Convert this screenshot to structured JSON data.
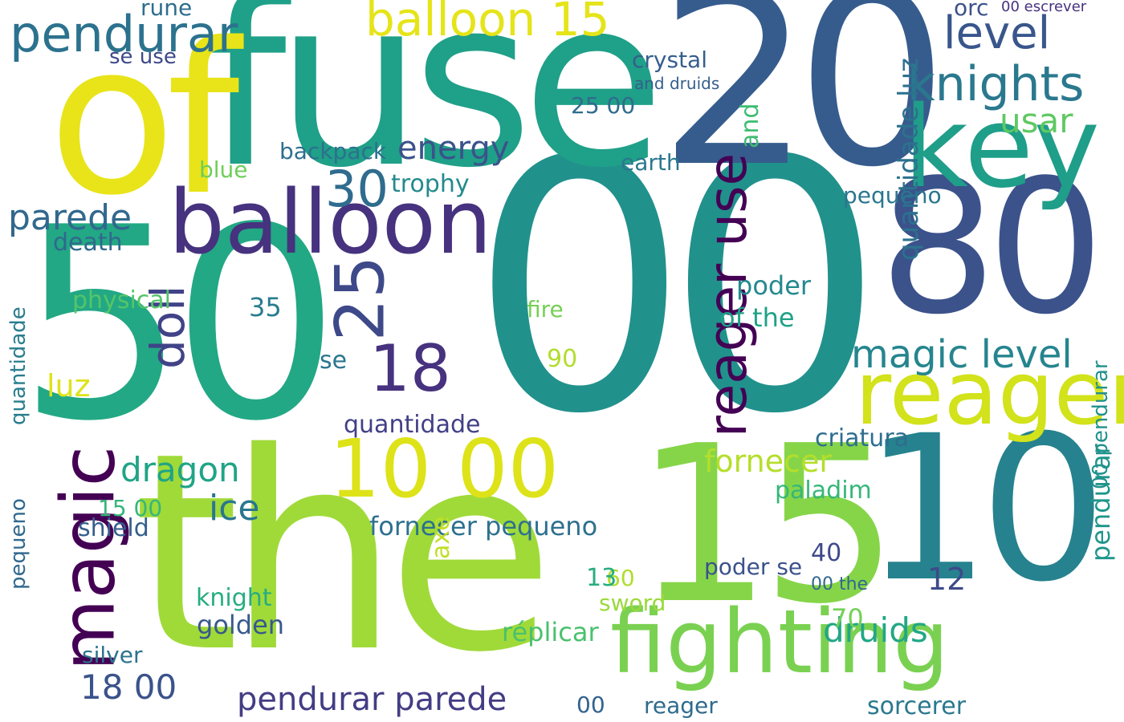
{
  "words": [
    {
      "text": "00",
      "color": "#21918c"
    },
    {
      "text": "50",
      "color": "#22a884"
    },
    {
      "text": "the",
      "color": "#a0da39"
    },
    {
      "text": "fuse",
      "color": "#1fa088"
    },
    {
      "text": "of",
      "color": "#e8e419"
    },
    {
      "text": "20",
      "color": "#365c8d"
    },
    {
      "text": "10",
      "color": "#26828e"
    },
    {
      "text": "15",
      "color": "#86d549"
    },
    {
      "text": "80",
      "color": "#3b528b"
    },
    {
      "text": "balloon",
      "color": "#46327e"
    },
    {
      "text": "magic",
      "color": "#440154"
    },
    {
      "text": "key",
      "color": "#1f9e89"
    },
    {
      "text": "reager",
      "color": "#d2e21b"
    },
    {
      "text": "fighting",
      "color": "#7ad151"
    },
    {
      "text": "10 00",
      "color": "#dde318"
    },
    {
      "text": "reager use",
      "color": "#440154"
    },
    {
      "text": "pendurar",
      "color": "#2c728e"
    },
    {
      "text": "knights",
      "color": "#2a788e"
    },
    {
      "text": "balloon 15",
      "color": "#e5e419"
    },
    {
      "text": "level",
      "color": "#39568c"
    },
    {
      "text": "18",
      "color": "#46327e"
    },
    {
      "text": "25",
      "color": "#3e4989"
    },
    {
      "text": "30",
      "color": "#2f6c8e"
    },
    {
      "text": "doll",
      "color": "#404387"
    },
    {
      "text": "parede",
      "color": "#31688e"
    },
    {
      "text": "magic level",
      "color": "#25858e"
    },
    {
      "text": "usar",
      "color": "#5ec962"
    },
    {
      "text": "energy",
      "color": "#3b528b"
    },
    {
      "text": "dragon",
      "color": "#20a486"
    },
    {
      "text": "ice",
      "color": "#2a768e"
    },
    {
      "text": "pendurar parede",
      "color": "#433d84"
    },
    {
      "text": "druids",
      "color": "#22a785"
    },
    {
      "text": "18 00",
      "color": "#3a538b"
    },
    {
      "text": "quantidade luz",
      "color": "#2c718e"
    },
    {
      "text": "pendurar",
      "color": "#1f968b"
    },
    {
      "text": "fornecer",
      "color": "#b5de2b"
    },
    {
      "text": "criatura",
      "color": "#2e6e8e"
    },
    {
      "text": "quantidade",
      "color": "#424086"
    },
    {
      "text": "poder",
      "color": "#23898e"
    },
    {
      "text": "of the",
      "color": "#1fa187"
    },
    {
      "text": "fornecer pequeno",
      "color": "#2d708e"
    },
    {
      "text": "réplicar",
      "color": "#4ac16d"
    },
    {
      "text": "sorcerer",
      "color": "#2a788e"
    },
    {
      "text": "paladim",
      "color": "#35b779"
    },
    {
      "text": "golden",
      "color": "#38598c"
    },
    {
      "text": "shield",
      "color": "#355f8d"
    },
    {
      "text": "physical",
      "color": "#54c568"
    },
    {
      "text": "death",
      "color": "#31688e"
    },
    {
      "text": "luz",
      "color": "#dde318"
    },
    {
      "text": "quantidade",
      "color": "#287d8e"
    },
    {
      "text": "backpack",
      "color": "#2d708e"
    },
    {
      "text": "crystal",
      "color": "#355e8d"
    },
    {
      "text": "trophy",
      "color": "#238a8d"
    },
    {
      "text": "earth",
      "color": "#2a788e"
    },
    {
      "text": "pequeno",
      "color": "#2a768e"
    },
    {
      "text": "knight",
      "color": "#27ad81"
    },
    {
      "text": "silver",
      "color": "#2c738e"
    },
    {
      "text": "poder se",
      "color": "#3b528b"
    },
    {
      "text": "reager",
      "color": "#2f6b8e"
    },
    {
      "text": "sword",
      "color": "#9bd93c"
    },
    {
      "text": "fire",
      "color": "#75d054"
    },
    {
      "text": "blue",
      "color": "#6ece58"
    },
    {
      "text": "se use",
      "color": "#3e4989"
    },
    {
      "text": "rune",
      "color": "#2e6d8e"
    },
    {
      "text": "orc",
      "color": "#3b528b"
    },
    {
      "text": "00 escrever",
      "color": "#46327e"
    },
    {
      "text": "12",
      "color": "#3e4a89"
    },
    {
      "text": "40",
      "color": "#3e4a89"
    },
    {
      "text": "70",
      "color": "#73d056"
    },
    {
      "text": "60",
      "color": "#b0dd2f"
    },
    {
      "text": "90",
      "color": "#b2dd2d"
    },
    {
      "text": "35",
      "color": "#287c8e"
    },
    {
      "text": "13",
      "color": "#26ad81"
    },
    {
      "text": "25 00",
      "color": "#2f6c8e"
    },
    {
      "text": "15 00",
      "color": "#35b779"
    },
    {
      "text": "00 pendurar",
      "color": "#21918c"
    },
    {
      "text": "and",
      "color": "#3fbc73"
    },
    {
      "text": "and druids",
      "color": "#355f8d"
    },
    {
      "text": "axe",
      "color": "#c0df25"
    },
    {
      "text": "00",
      "color": "#33638d"
    },
    {
      "text": "00 the",
      "color": "#31688e"
    },
    {
      "text": "se",
      "color": "#2a768e"
    },
    {
      "text": "quantidade",
      "color": "#3d4d8a"
    },
    {
      "text": "pequeno",
      "color": "#31688e"
    }
  ]
}
